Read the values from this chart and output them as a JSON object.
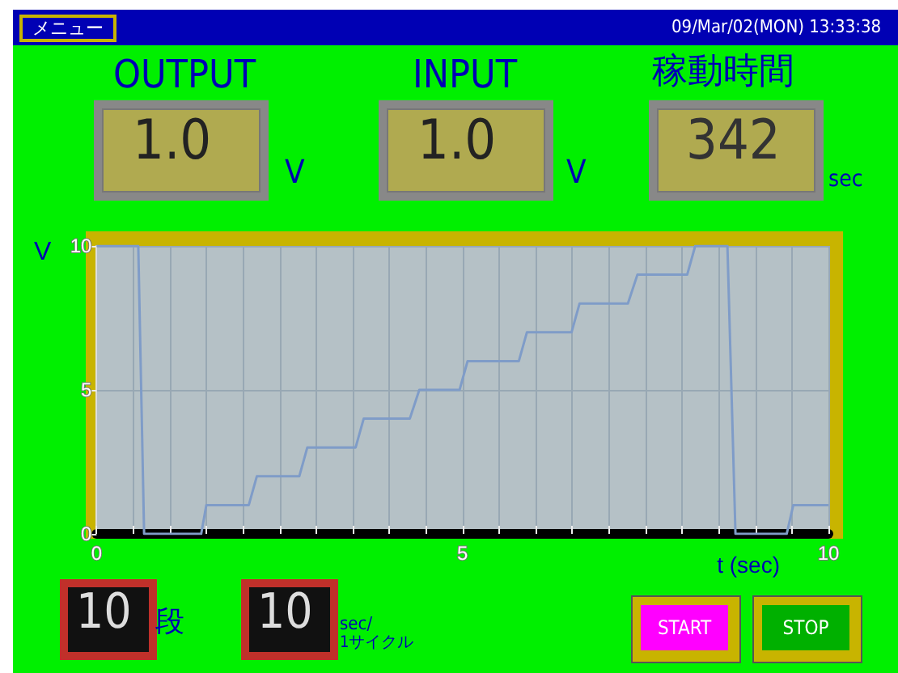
{
  "chart_data": {
    "type": "line",
    "xlabel": "t (sec)",
    "ylabel": "V",
    "x": [
      0,
      0.57,
      0.65,
      1.43,
      1.5,
      2.08,
      2.19,
      2.77,
      2.88,
      3.54,
      3.65,
      4.28,
      4.41,
      4.96,
      5.07,
      5.77,
      5.88,
      6.49,
      6.6,
      7.26,
      7.39,
      8.07,
      8.18,
      8.62,
      8.73,
      9.43,
      9.52,
      10
    ],
    "series": [
      {
        "color": "#7f9cc8",
        "values": [
          10,
          10,
          0,
          0,
          1,
          1,
          2,
          2,
          3,
          3,
          4,
          4,
          5,
          5,
          6,
          6,
          7,
          7,
          8,
          8,
          9,
          9,
          10,
          10,
          0,
          0,
          1,
          1
        ]
      }
    ],
    "xlim": [
      0,
      10
    ],
    "xticks": [
      0,
      {
        "value": 0.5,
        "label": null
      },
      {
        "value": 1,
        "label": null
      },
      {
        "value": 1.5,
        "label": null
      },
      {
        "value": 2,
        "label": null
      },
      {
        "value": 2.5,
        "label": null
      },
      {
        "value": 3,
        "label": null
      },
      {
        "value": 3.5,
        "label": null
      },
      {
        "value": 4,
        "label": null
      },
      {
        "value": 4.5,
        "label": null
      },
      5,
      {
        "value": 5.5,
        "label": null
      },
      {
        "value": 6,
        "label": null
      },
      {
        "value": 6.5,
        "label": null
      },
      {
        "value": 7,
        "label": null
      },
      {
        "value": 7.5,
        "label": null
      },
      {
        "value": 8,
        "label": null
      },
      {
        "value": 8.5,
        "label": null
      },
      {
        "value": 9,
        "label": null
      },
      {
        "value": 9.5,
        "label": null
      },
      10
    ],
    "ylim": [
      0,
      10
    ],
    "yticks": [
      0,
      5,
      10
    ],
    "grid": true,
    "marker": "none",
    "line_style": "solid",
    "annotations": [
      "メニュー",
      "09/Mar/02(MON) 13:33:38",
      "OUTPUT",
      "1.0",
      "V",
      "INPUT",
      "1.0",
      "V",
      "稼動時間",
      "342",
      "sec",
      "10",
      "段",
      "10",
      "sec/",
      "1サイクル",
      "START",
      "STOP"
    ]
  }
}
